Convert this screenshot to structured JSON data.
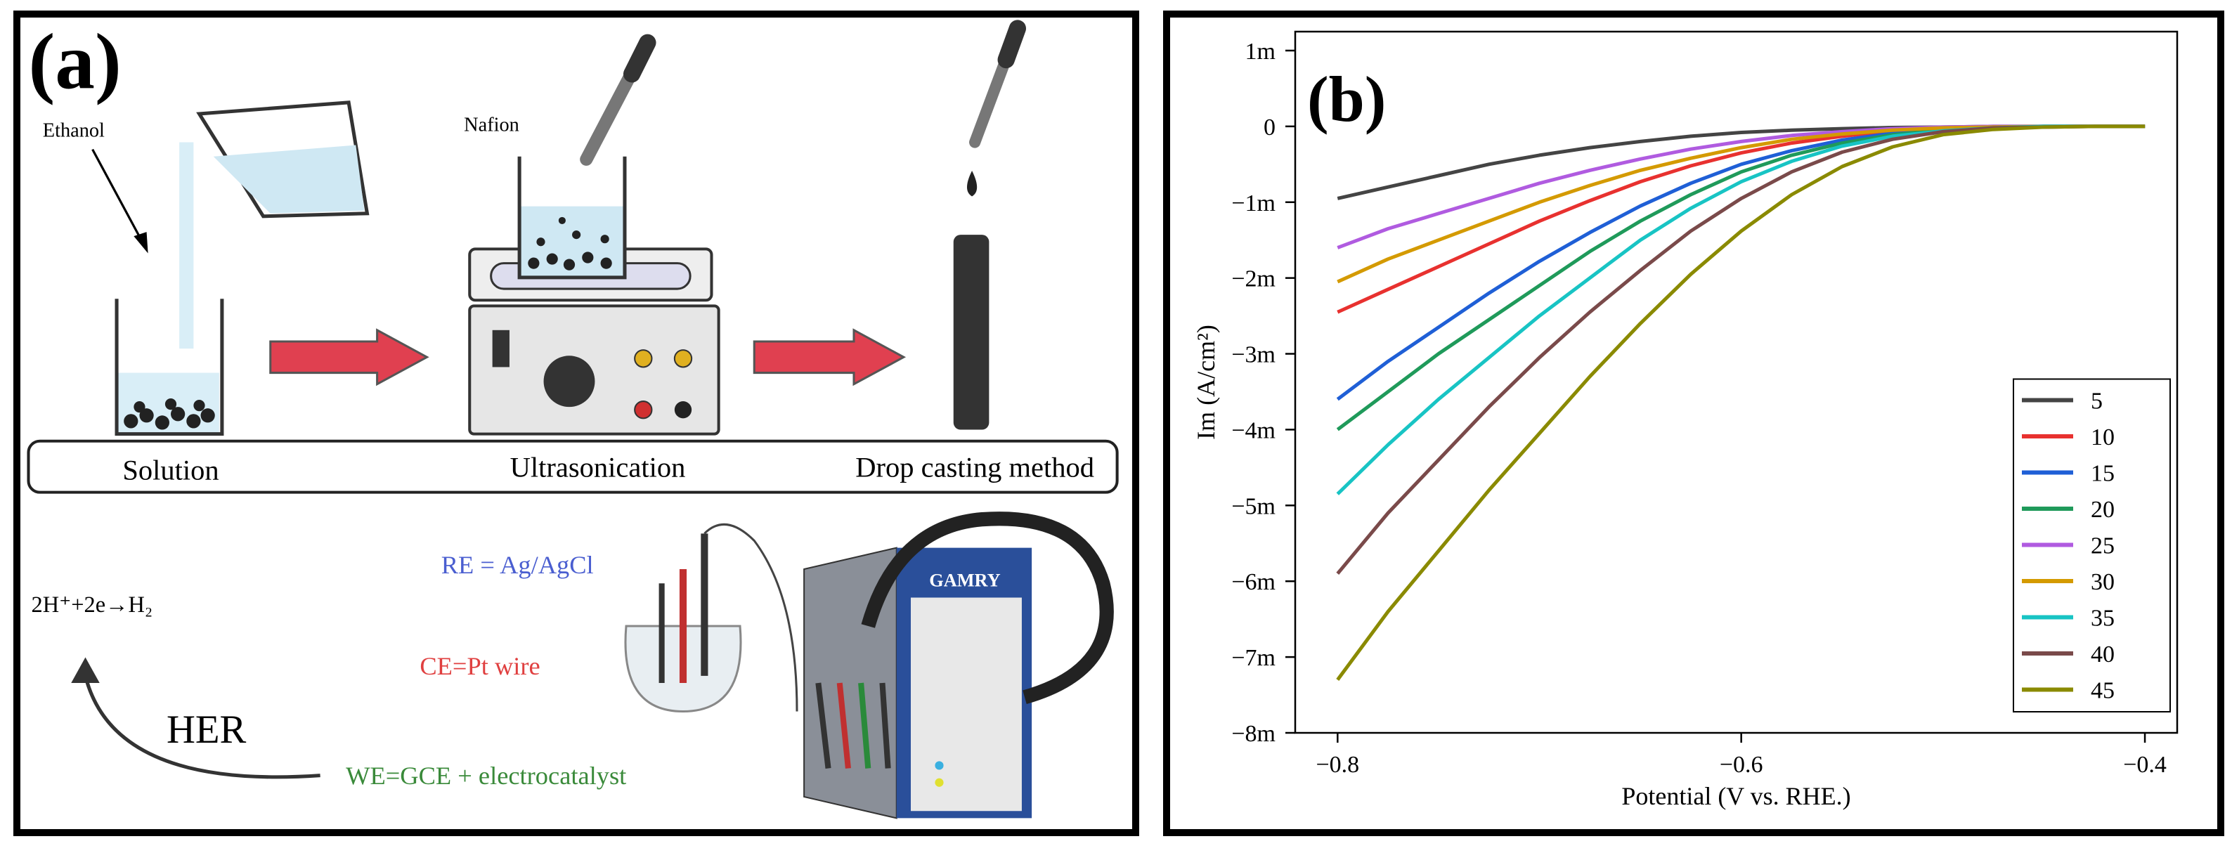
{
  "panel_a": {
    "label": "(a)",
    "ethanol": "Ethanol",
    "nafion": "Nafion",
    "steps": [
      "Solution",
      "Ultrasonication",
      "Drop casting method"
    ],
    "reaction": "2H⁺+2e→H₂",
    "her": "HER",
    "re": "RE = Ag/AgCl",
    "ce": "CE=Pt wire",
    "we": "WE=GCE + electrocatalyst",
    "device": "GAMRY"
  },
  "chart_data": {
    "type": "line",
    "panel_label": "(b)",
    "xlabel": "Potential (V vs. RHE.)",
    "ylabel": "Im (A/cm²)",
    "x": [
      -0.8,
      -0.775,
      -0.75,
      -0.725,
      -0.7,
      -0.675,
      -0.65,
      -0.625,
      -0.6,
      -0.575,
      -0.55,
      -0.525,
      -0.5,
      -0.475,
      -0.45,
      -0.425,
      -0.4
    ],
    "xlim": [
      -0.821,
      -0.384
    ],
    "ylim": [
      -0.008,
      0.00125
    ],
    "xticks": [
      {
        "value": -0.8,
        "label": "−0.8"
      },
      {
        "value": -0.6,
        "label": "−0.6"
      },
      {
        "value": -0.4,
        "label": "−0.4"
      }
    ],
    "yticks": [
      {
        "value": 0.001,
        "label": "1m"
      },
      0,
      {
        "value": -0.001,
        "label": "−1m"
      },
      {
        "value": -0.002,
        "label": "−2m"
      },
      {
        "value": -0.003,
        "label": "−3m"
      },
      {
        "value": -0.004,
        "label": "−4m"
      },
      {
        "value": -0.005,
        "label": "−5m"
      },
      {
        "value": -0.006,
        "label": "−6m"
      },
      {
        "value": -0.007,
        "label": "−7m"
      },
      {
        "value": -0.008,
        "label": "−8m"
      }
    ],
    "legend": "lower right",
    "series": [
      {
        "name": "5",
        "color": "#444444",
        "values": [
          -0.00095,
          -0.0008,
          -0.00065,
          -0.0005,
          -0.00038,
          -0.00028,
          -0.0002,
          -0.00013,
          -8e-05,
          -5e-05,
          -3e-05,
          -1.5e-05,
          -1e-05,
          0,
          0,
          0,
          0
        ]
      },
      {
        "name": "10",
        "color": "#e8312f",
        "values": [
          -0.00245,
          -0.00215,
          -0.00185,
          -0.00155,
          -0.00125,
          -0.00098,
          -0.00073,
          -0.00052,
          -0.00035,
          -0.00022,
          -0.00013,
          -6e-05,
          -3e-05,
          -1e-05,
          0,
          0,
          0
        ]
      },
      {
        "name": "15",
        "color": "#1f5fd6",
        "values": [
          -0.0036,
          -0.0031,
          -0.00265,
          -0.0022,
          -0.00178,
          -0.0014,
          -0.00105,
          -0.00075,
          -0.0005,
          -0.00032,
          -0.00018,
          -9e-05,
          -4e-05,
          -1e-05,
          0,
          0,
          0
        ]
      },
      {
        "name": "20",
        "color": "#1f9a5a",
        "values": [
          -0.004,
          -0.0035,
          -0.003,
          -0.00255,
          -0.0021,
          -0.00165,
          -0.00125,
          -0.0009,
          -0.0006,
          -0.00038,
          -0.00022,
          -0.00011,
          -5e-05,
          -2e-05,
          0,
          0,
          0
        ]
      },
      {
        "name": "25",
        "color": "#b05be0",
        "values": [
          -0.0016,
          -0.00135,
          -0.00115,
          -0.00095,
          -0.00075,
          -0.00058,
          -0.00043,
          -0.0003,
          -0.0002,
          -0.00012,
          -7e-05,
          -3e-05,
          -1e-05,
          0,
          0,
          0,
          0
        ]
      },
      {
        "name": "30",
        "color": "#d49a00",
        "values": [
          -0.00205,
          -0.00175,
          -0.0015,
          -0.00125,
          -0.001,
          -0.00078,
          -0.00058,
          -0.00042,
          -0.00028,
          -0.00017,
          -0.0001,
          -5e-05,
          -2e-05,
          -1e-05,
          0,
          0,
          0
        ]
      },
      {
        "name": "35",
        "color": "#18c4c4",
        "values": [
          -0.00485,
          -0.0042,
          -0.0036,
          -0.00305,
          -0.0025,
          -0.002,
          -0.0015,
          -0.00108,
          -0.00073,
          -0.00046,
          -0.00026,
          -0.00013,
          -6e-05,
          -2e-05,
          0,
          0,
          0
        ]
      },
      {
        "name": "40",
        "color": "#7a4a4a",
        "values": [
          -0.0059,
          -0.0051,
          -0.0044,
          -0.0037,
          -0.00305,
          -0.00245,
          -0.0019,
          -0.00138,
          -0.00095,
          -0.0006,
          -0.00034,
          -0.00017,
          -7e-05,
          -2e-05,
          -1e-05,
          0,
          0
        ]
      },
      {
        "name": "45",
        "color": "#8a8a00",
        "values": [
          -0.0073,
          -0.0064,
          -0.0056,
          -0.0048,
          -0.00405,
          -0.0033,
          -0.0026,
          -0.00195,
          -0.00138,
          -0.0009,
          -0.00053,
          -0.00027,
          -0.00011,
          -4e-05,
          -1e-05,
          0,
          0
        ]
      }
    ]
  }
}
